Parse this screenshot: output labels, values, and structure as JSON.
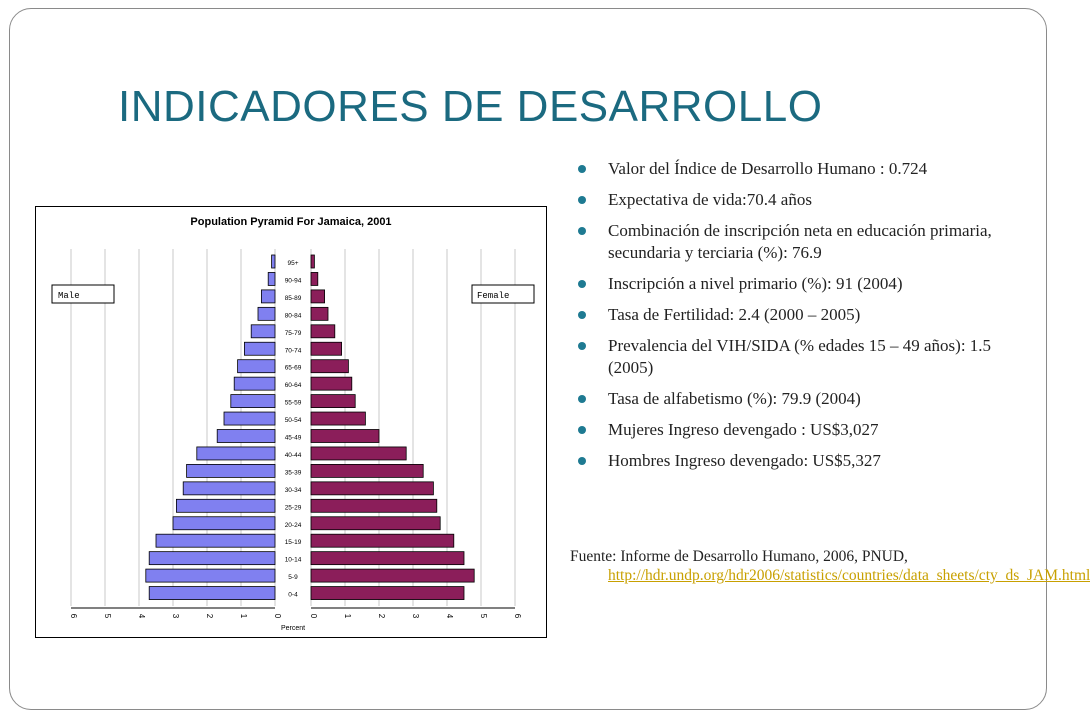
{
  "slide": {
    "title": "INDICADORES DE DESARROLLO",
    "bullets": [
      " Valor del Índice de Desarrollo Humano : 0.724",
      "Expectativa de vida:70.4 años",
      "Combinación de inscripción neta  en educación primaria, secundaria y terciaria (%): 76.9",
      "Inscripción a nivel primario (%): 91 (2004)",
      "Tasa de Fertilidad: 2.4 (2000 – 2005)",
      "Prevalencia del VIH/SIDA (% edades 15 – 49 años): 1.5 (2005)",
      "Tasa de alfabetismo (%): 79.9 (2004)",
      "Mujeres Ingreso devengado : US$3,027",
      "Hombres Ingreso devengado: US$5,327"
    ],
    "source_prefix": "Fuente: Informe de Desarrollo Humano, 2006, PNUD,",
    "source_link": "http://hdr.undp.org/hdr2006/statistics/countries/data_sheets/cty_ds_JAM.html",
    "accent_color": "#1b6a80",
    "bullet_color": "#1e7a92",
    "link_color": "#c8a000"
  },
  "chart_data": {
    "type": "bar",
    "title": "Population Pyramid For Jamaica, 2001",
    "xlabel": "Percent",
    "categories": [
      "95+",
      "90-94",
      "85-89",
      "80-84",
      "75-79",
      "70-74",
      "65-69",
      "60-64",
      "55-59",
      "50-54",
      "45-49",
      "40-44",
      "35-39",
      "30-34",
      "25-29",
      "20-24",
      "15-19",
      "10-14",
      "5-9",
      "0-4"
    ],
    "series": [
      {
        "name": "Male",
        "color": "#8080f0",
        "values": [
          0.1,
          0.2,
          0.4,
          0.5,
          0.7,
          0.9,
          1.1,
          1.2,
          1.3,
          1.5,
          1.7,
          2.3,
          2.6,
          2.7,
          2.9,
          3.0,
          3.5,
          3.7,
          3.8,
          3.7
        ]
      },
      {
        "name": "Female",
        "color": "#8b1e5a",
        "values": [
          0.1,
          0.2,
          0.4,
          0.5,
          0.7,
          0.9,
          1.1,
          1.2,
          1.3,
          1.6,
          2.0,
          2.8,
          3.3,
          3.6,
          3.7,
          3.8,
          4.2,
          4.5,
          4.8,
          4.5
        ]
      }
    ],
    "male_ticks": [
      "6",
      "5",
      "4",
      "3",
      "2",
      "1",
      "0"
    ],
    "female_ticks": [
      "0",
      "1",
      "2",
      "3",
      "4",
      "5",
      "6"
    ],
    "xlim": [
      0,
      6
    ],
    "grid": true,
    "legend": [
      "Male",
      "Female"
    ]
  }
}
